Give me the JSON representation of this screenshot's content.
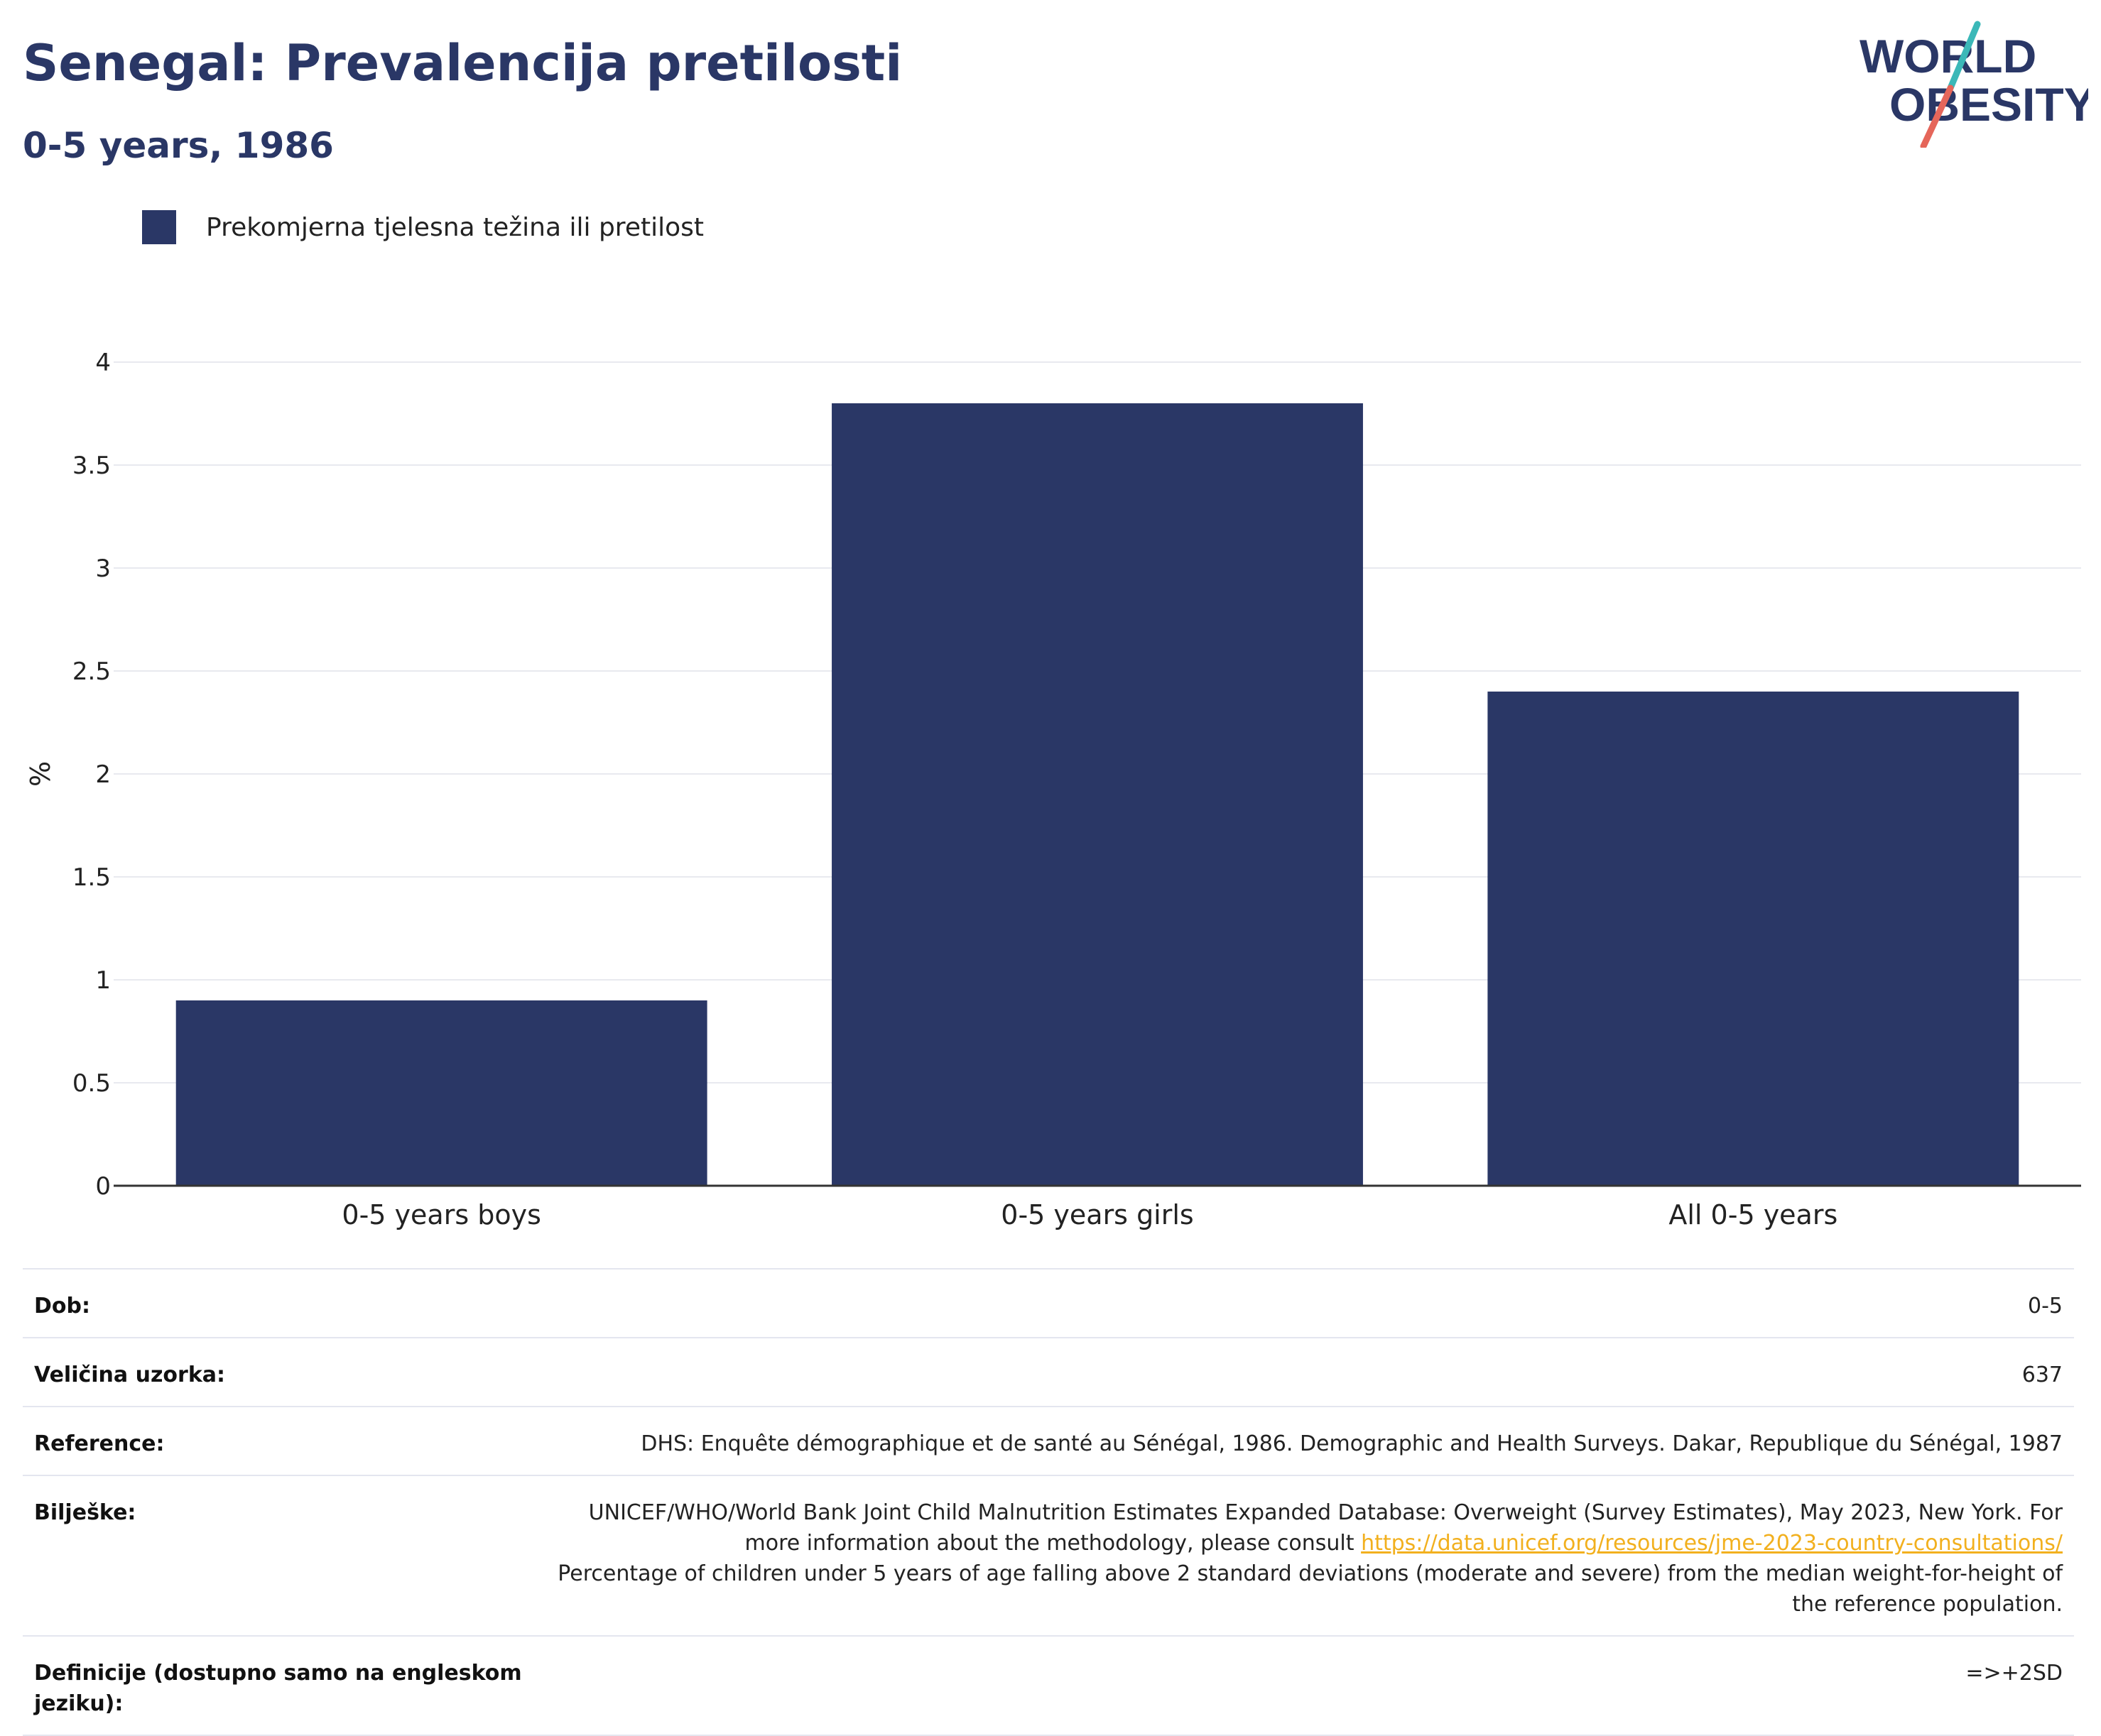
{
  "header": {
    "title": "Senegal: Prevalencija pretilosti",
    "subtitle": "0-5 years, 1986"
  },
  "logo": {
    "line1": "WORLD",
    "line2": "OBESITY",
    "colors": {
      "text": "#2a3766",
      "slash_top": "#3bb8b8",
      "slash_bottom": "#e5665a"
    }
  },
  "legend": {
    "label": "Prekomjerna tjelesna težina ili pretilost"
  },
  "chart_data": {
    "type": "bar",
    "categories": [
      "0-5 years boys",
      "0-5 years girls",
      "All 0-5 years"
    ],
    "series": [
      {
        "name": "Prekomjerna tjelesna težina ili pretilost",
        "values": [
          0.9,
          3.8,
          2.4
        ],
        "color": "#2a3766"
      }
    ],
    "ylabel": "%",
    "ylim": [
      0,
      4
    ],
    "yticks": [
      0,
      0.5,
      1,
      1.5,
      2,
      2.5,
      3,
      3.5,
      4
    ],
    "ytick_labels": [
      "0",
      "0.5",
      "1",
      "1.5",
      "2",
      "2.5",
      "3",
      "3.5",
      "4"
    ],
    "grid": true
  },
  "info": {
    "age_label": "Dob:",
    "age_value": "0-5",
    "sample_label": "Veličina uzorka:",
    "sample_value": "637",
    "reference_label": "Reference:",
    "reference_value": "DHS: Enquête démographique et de santé au Sénégal, 1986. Demographic and Health Surveys. Dakar, Republique du Sénégal, 1987",
    "notes_label": "Bilješke:",
    "notes_text1": "UNICEF/WHO/World Bank Joint Child Malnutrition Estimates Expanded Database: Overweight (Survey Estimates), May 2023, New York. For more information about the methodology, please consult",
    "notes_link": "https://data.unicef.org/resources/jme-2023-country-consultations/",
    "notes_text2": "Percentage of children under 5 years of age falling above 2 standard deviations (moderate and severe) from the median weight-for-height of the reference population.",
    "definitions_label": "Definicije (dostupno samo na engleskom jeziku):",
    "definitions_value": "=>+2SD"
  }
}
